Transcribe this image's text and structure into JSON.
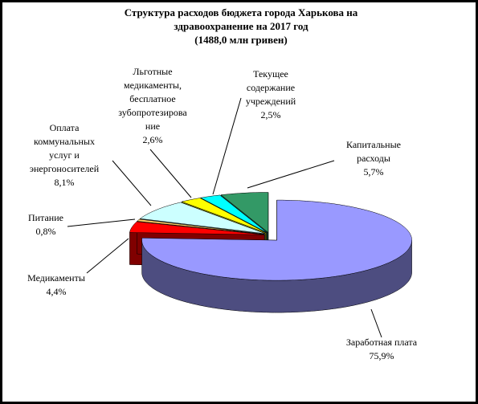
{
  "chart_data": {
    "type": "pie3d",
    "title": "Структура расходов бюджета города Харькова на\nздравоохранение на 2017 год\n(1488,0 млн гривен)",
    "categories": [
      "Заработная плата",
      "Медикаменты",
      "Питание",
      "Оплата\nкоммунальных\nуслуг и\nэнергоносителей",
      "Льготные\nмедикаменты,\nбесплатное\nзубопротезирова\nние",
      "Текущее\nсодержание\nучреждений",
      "Капитальные\nрасходы"
    ],
    "values": [
      75.9,
      4.4,
      0.8,
      8.1,
      2.6,
      2.5,
      5.7
    ],
    "value_labels": [
      "75,9%",
      "4,4%",
      "0,8%",
      "8,1%",
      "2,6%",
      "2,5%",
      "5,7%"
    ],
    "colors": [
      "#9999ff",
      "#ff0000",
      "#ffcc66",
      "#ccffff",
      "#ffff00",
      "#00ffff",
      "#339966"
    ]
  }
}
